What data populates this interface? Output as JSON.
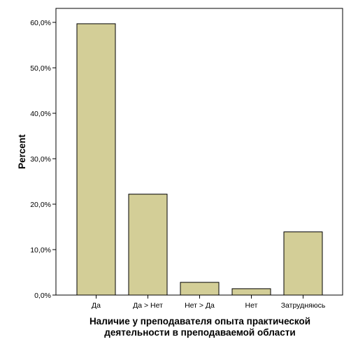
{
  "chart_data": {
    "type": "bar",
    "categories": [
      "Да",
      "Да > Нет",
      "Нет > Да",
      "Нет",
      "Затрудняюсь"
    ],
    "values": [
      59.7,
      22.2,
      2.8,
      1.4,
      13.9
    ],
    "ylabel": "Percent",
    "xlabel_lines": [
      "Наличие у преподавателя опыта практической",
      "деятельности в преподаваемой области"
    ],
    "y_ticks": [
      "0,0%",
      "10,0%",
      "20,0%",
      "30,0%",
      "40,0%",
      "50,0%",
      "60,0%"
    ],
    "ylim": [
      0,
      65
    ],
    "grid": false,
    "colors": {
      "bar_fill": "#d3ce97",
      "bar_stroke": "#000000",
      "background": "#ffffff"
    }
  }
}
